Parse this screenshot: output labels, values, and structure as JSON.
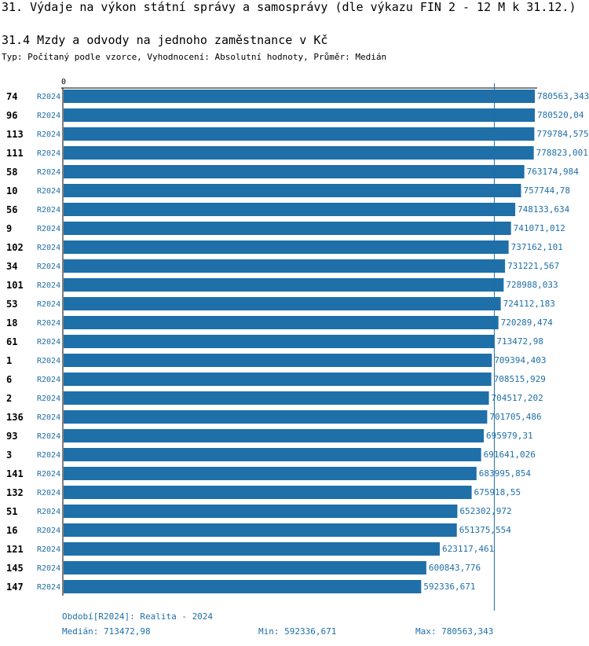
{
  "header": {
    "title": "31. Výdaje na výkon státní správy a samosprávy (dle výkazu FIN 2 - 12 M k 31.12.)",
    "subtitle": "31.4 Mzdy a odvody na jednoho zaměstnance v Kč",
    "meta": "Typ: Počítaný podle vzorce, Vyhodnocení: Absolutní hodnoty, Průměr: Medián"
  },
  "colors": {
    "bar": "#1f6fa8",
    "text_blue": "#1f6fa8",
    "median_line": "#1f6fa8"
  },
  "chart_data": {
    "type": "bar",
    "orientation": "horizontal",
    "axis_zero_label": "0",
    "xlim": [
      0,
      780563.343
    ],
    "median_value": 713472.98,
    "rows": [
      {
        "id": "74",
        "period": "R2024",
        "value": 780563.343,
        "label": "780563,343"
      },
      {
        "id": "96",
        "period": "R2024",
        "value": 780520.04,
        "label": "780520,04"
      },
      {
        "id": "113",
        "period": "R2024",
        "value": 779784.575,
        "label": "779784,575"
      },
      {
        "id": "111",
        "period": "R2024",
        "value": 778823.001,
        "label": "778823,001"
      },
      {
        "id": "58",
        "period": "R2024",
        "value": 763174.984,
        "label": "763174,984"
      },
      {
        "id": "10",
        "period": "R2024",
        "value": 757744.78,
        "label": "757744,78"
      },
      {
        "id": "56",
        "period": "R2024",
        "value": 748133.634,
        "label": "748133,634"
      },
      {
        "id": "9",
        "period": "R2024",
        "value": 741071.012,
        "label": "741071,012"
      },
      {
        "id": "102",
        "period": "R2024",
        "value": 737162.101,
        "label": "737162,101"
      },
      {
        "id": "34",
        "period": "R2024",
        "value": 731221.567,
        "label": "731221,567"
      },
      {
        "id": "101",
        "period": "R2024",
        "value": 728988.033,
        "label": "728988,033"
      },
      {
        "id": "53",
        "period": "R2024",
        "value": 724112.183,
        "label": "724112,183"
      },
      {
        "id": "18",
        "period": "R2024",
        "value": 720289.474,
        "label": "720289,474"
      },
      {
        "id": "61",
        "period": "R2024",
        "value": 713472.98,
        "label": "713472,98"
      },
      {
        "id": "1",
        "period": "R2024",
        "value": 709394.403,
        "label": "709394,403"
      },
      {
        "id": "6",
        "period": "R2024",
        "value": 708515.929,
        "label": "708515,929"
      },
      {
        "id": "2",
        "period": "R2024",
        "value": 704517.202,
        "label": "704517,202"
      },
      {
        "id": "136",
        "period": "R2024",
        "value": 701705.486,
        "label": "701705,486"
      },
      {
        "id": "93",
        "period": "R2024",
        "value": 695979.31,
        "label": "695979,31"
      },
      {
        "id": "3",
        "period": "R2024",
        "value": 691641.026,
        "label": "691641,026"
      },
      {
        "id": "141",
        "period": "R2024",
        "value": 683995.854,
        "label": "683995,854"
      },
      {
        "id": "132",
        "period": "R2024",
        "value": 675918.55,
        "label": "675918,55"
      },
      {
        "id": "51",
        "period": "R2024",
        "value": 652302.972,
        "label": "652302,972"
      },
      {
        "id": "16",
        "period": "R2024",
        "value": 651375.554,
        "label": "651375,554"
      },
      {
        "id": "121",
        "period": "R2024",
        "value": 623117.461,
        "label": "623117,461"
      },
      {
        "id": "145",
        "period": "R2024",
        "value": 600843.776,
        "label": "600843,776"
      },
      {
        "id": "147",
        "period": "R2024",
        "value": 592336.671,
        "label": "592336,671"
      }
    ]
  },
  "footer": {
    "period": "Období[R2024]: Realita - 2024",
    "median": "Medián: 713472,98",
    "min": "Min: 592336,671",
    "max": "Max: 780563,343"
  }
}
